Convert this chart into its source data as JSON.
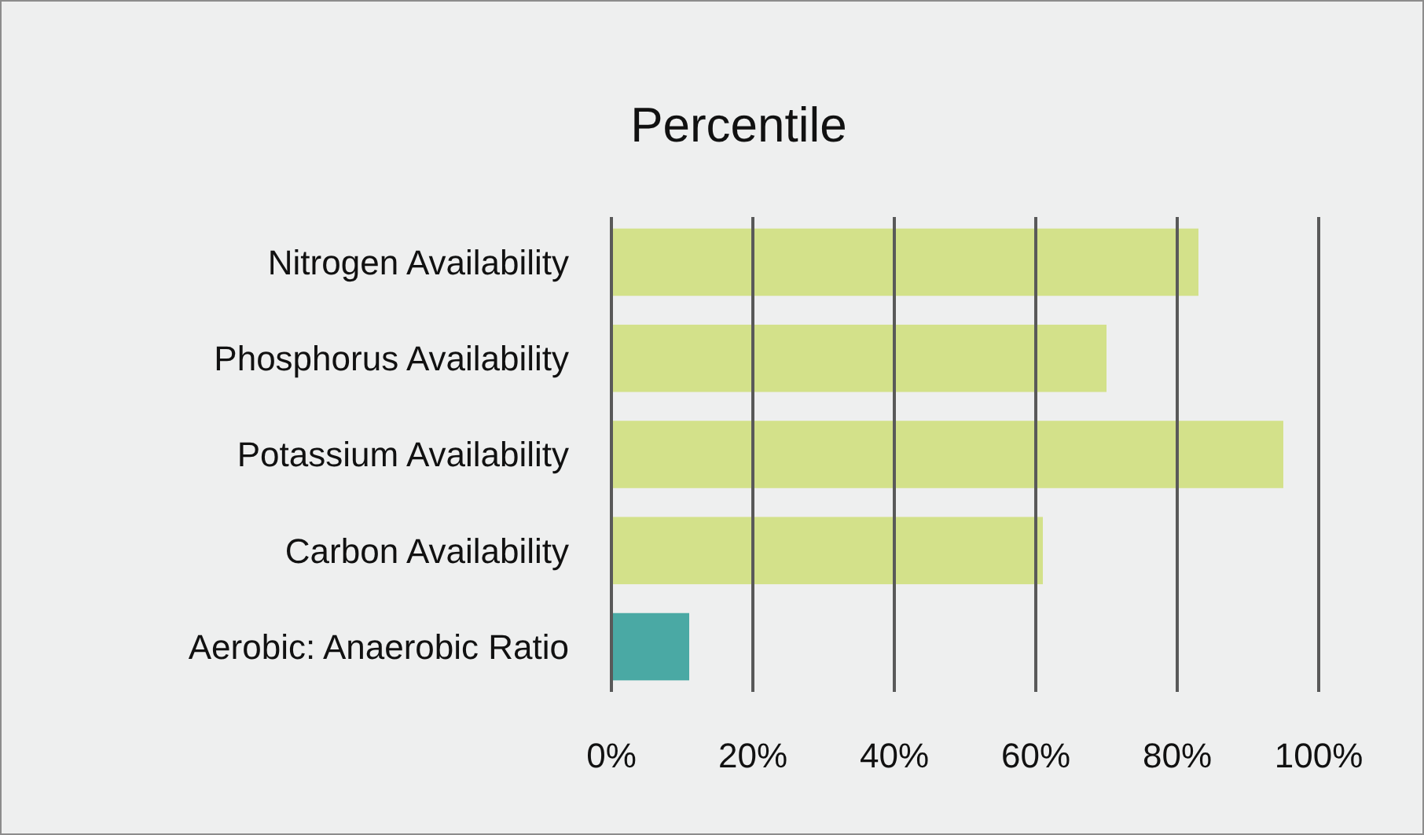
{
  "chart_data": {
    "type": "bar",
    "orientation": "horizontal",
    "title": "Percentile",
    "categories": [
      "Nitrogen Availability",
      "Phosphorus Availability",
      "Potassium Availability",
      "Carbon Availability",
      "Aerobic: Anaerobic Ratio"
    ],
    "values": [
      83,
      70,
      95,
      61,
      11
    ],
    "colors": [
      "#d3e18a",
      "#d3e18a",
      "#d3e18a",
      "#d3e18a",
      "#4aa9a4"
    ],
    "xlim": [
      0,
      100
    ],
    "xticks": [
      {
        "value": 0,
        "label": "0%"
      },
      {
        "value": 20,
        "label": "20%"
      },
      {
        "value": 40,
        "label": "40%"
      },
      {
        "value": 60,
        "label": "60%"
      },
      {
        "value": 80,
        "label": "80%"
      },
      {
        "value": 100,
        "label": "100%"
      }
    ],
    "grid": "x"
  }
}
